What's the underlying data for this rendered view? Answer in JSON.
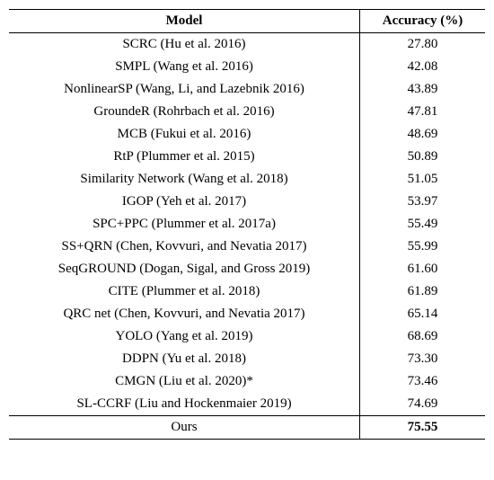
{
  "table": {
    "headers": {
      "model": "Model",
      "acc": "Accuracy (%)"
    },
    "rows": [
      {
        "model": "SCRC (Hu et al. 2016)",
        "acc": "27.80"
      },
      {
        "model": "SMPL (Wang et al. 2016)",
        "acc": "42.08"
      },
      {
        "model": "NonlinearSP (Wang, Li, and Lazebnik 2016)",
        "acc": "43.89"
      },
      {
        "model": "GroundeR (Rohrbach et al. 2016)",
        "acc": "47.81"
      },
      {
        "model": "MCB (Fukui et al. 2016)",
        "acc": "48.69"
      },
      {
        "model": "RtP (Plummer et al. 2015)",
        "acc": "50.89"
      },
      {
        "model": "Similarity Network (Wang et al. 2018)",
        "acc": "51.05"
      },
      {
        "model": "IGOP (Yeh et al. 2017)",
        "acc": "53.97"
      },
      {
        "model": "SPC+PPC (Plummer et al. 2017a)",
        "acc": "55.49"
      },
      {
        "model": "SS+QRN (Chen, Kovvuri, and Nevatia 2017)",
        "acc": "55.99"
      },
      {
        "model": "SeqGROUND (Dogan, Sigal, and Gross 2019)",
        "acc": "61.60"
      },
      {
        "model": "CITE (Plummer et al. 2018)",
        "acc": "61.89"
      },
      {
        "model": "QRC net (Chen, Kovvuri, and Nevatia 2017)",
        "acc": "65.14"
      },
      {
        "model": "YOLO (Yang et al. 2019)",
        "acc": "68.69"
      },
      {
        "model": "DDPN (Yu et al. 2018)",
        "acc": "73.30"
      },
      {
        "model": "CMGN (Liu et al. 2020)*",
        "acc": "73.46"
      },
      {
        "model": "SL-CCRF (Liu and Hockenmaier 2019)",
        "acc": "74.69"
      }
    ],
    "ours": {
      "model": "Ours",
      "acc": "75.55"
    }
  }
}
